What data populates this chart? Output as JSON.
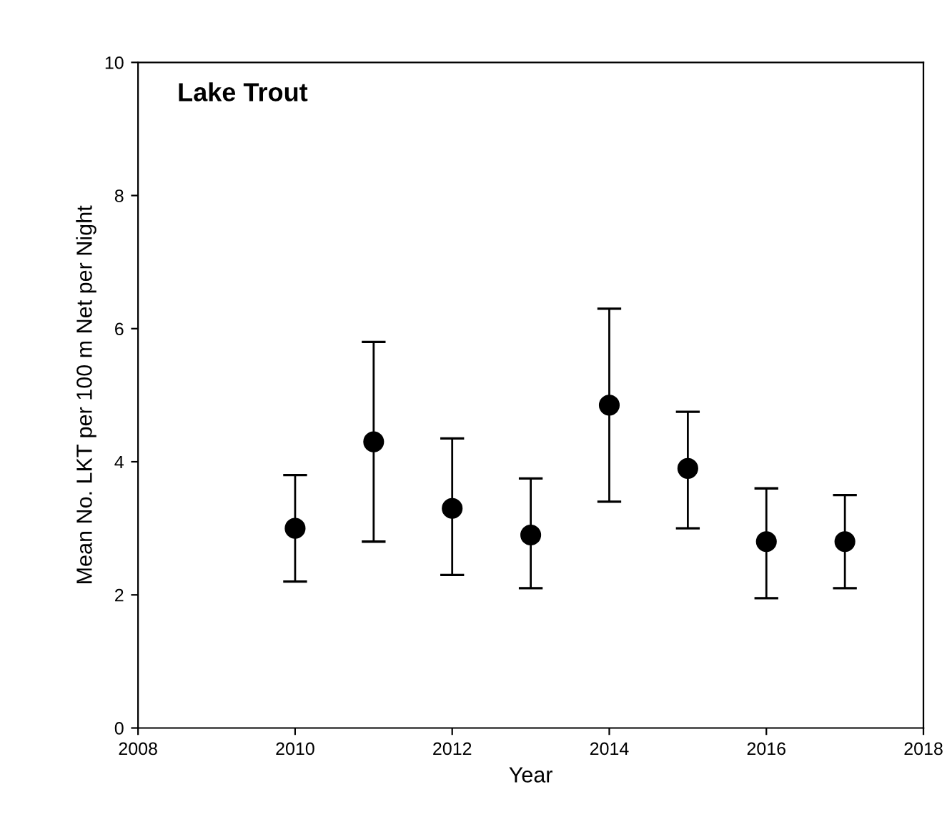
{
  "chart_data": {
    "type": "scatter",
    "title": "Lake Trout",
    "xlabel": "Year",
    "ylabel": "Mean No. LKT per 100 m Net per Night",
    "x": [
      2010,
      2011,
      2012,
      2013,
      2014,
      2015,
      2016,
      2017
    ],
    "series": [
      {
        "color": "#000000",
        "values": [
          3.0,
          4.3,
          3.3,
          2.9,
          4.85,
          3.9,
          2.8,
          2.8
        ],
        "errors": [
          [
            2.2,
            3.8
          ],
          [
            2.8,
            5.8
          ],
          [
            2.3,
            4.35
          ],
          [
            2.1,
            3.75
          ],
          [
            3.4,
            6.3
          ],
          [
            3.0,
            4.75
          ],
          [
            1.95,
            3.6
          ],
          [
            2.1,
            3.5
          ]
        ]
      }
    ],
    "marker": "circle",
    "xlim": [
      2008,
      2018
    ],
    "xticks": [
      2008,
      2010,
      2012,
      2014,
      2016,
      2018
    ],
    "ylim": [
      0,
      10
    ],
    "yticks": [
      0,
      2,
      4,
      6,
      8,
      10
    ],
    "grid": false,
    "legend": false
  }
}
